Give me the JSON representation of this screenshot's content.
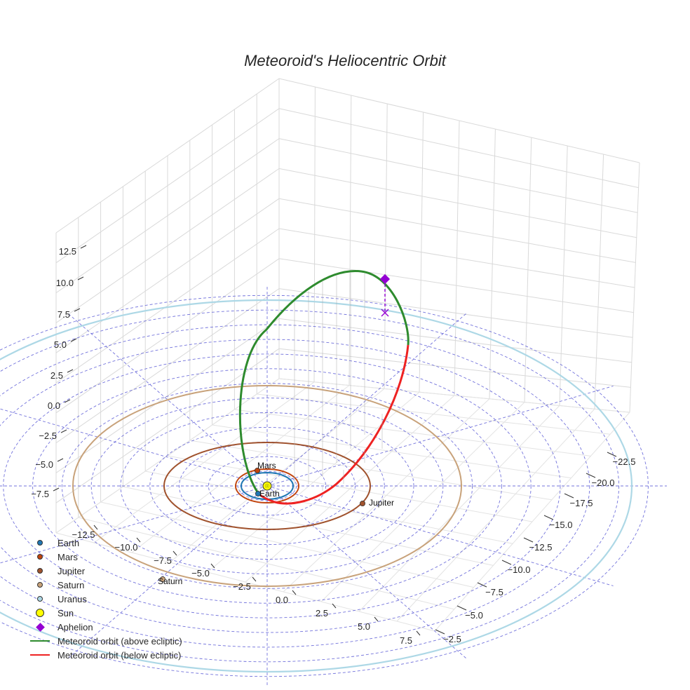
{
  "chart_data": {
    "type": "scatter",
    "projection": "3d",
    "title": "Meteoroid's Heliocentric Orbit",
    "xlabel": "",
    "ylabel": "",
    "zlabel": "",
    "x_ticks": [
      "−12.5",
      "−10.0",
      "−7.5",
      "−5.0",
      "−2.5",
      "0.0",
      "2.5",
      "5.0",
      "7.5"
    ],
    "y_ticks": [
      "−2.5",
      "−5.0",
      "−7.5",
      "−10.0",
      "−12.5",
      "−15.0",
      "−17.5",
      "−20.0",
      "−22.5"
    ],
    "z_ticks": [
      "−7.5",
      "−5.0",
      "−2.5",
      "0.0",
      "2.5",
      "5.0",
      "7.5",
      "10.0",
      "12.5"
    ],
    "xlim": [
      -13.5,
      9
    ],
    "ylim": [
      -24,
      -1
    ],
    "zlim": [
      -8.5,
      13.5
    ],
    "grid": true,
    "ecliptic_grid": "dashed polar rings and radial spokes",
    "legend_position": "lower-left",
    "planets": [
      {
        "name": "Earth",
        "color": "#1f77b4",
        "orbit_radius_au": 1.0,
        "label_shown": true
      },
      {
        "name": "Mars",
        "color": "#c1440e",
        "orbit_radius_au": 1.52,
        "label_shown": true
      },
      {
        "name": "Jupiter",
        "color": "#a0522d",
        "orbit_radius_au": 5.2,
        "label_shown": true
      },
      {
        "name": "Saturn",
        "color": "#c8a27a",
        "orbit_radius_au": 9.58,
        "label_shown": true
      },
      {
        "name": "Uranus",
        "color": "#add8e6",
        "orbit_radius_au": 19.2,
        "label_shown": false
      }
    ],
    "sun": {
      "name": "Sun",
      "color": "#ffff00"
    },
    "aphelion": {
      "name": "Aphelion",
      "color": "#9400d3",
      "x": 3.2,
      "y": -12.6,
      "z": 7.9
    },
    "series": [
      {
        "name": "Meteoroid orbit (above ecliptic)",
        "color": "#2e8b2e"
      },
      {
        "name": "Meteoroid orbit (below ecliptic)",
        "color": "#ee2222"
      }
    ],
    "legend": [
      {
        "label": "Earth",
        "marker": "dot",
        "color": "#1f77b4",
        "size": 8
      },
      {
        "label": "Mars",
        "marker": "dot",
        "color": "#c1440e",
        "size": 8
      },
      {
        "label": "Jupiter",
        "marker": "dot",
        "color": "#a0522d",
        "size": 8
      },
      {
        "label": "Saturn",
        "marker": "dot",
        "color": "#c8a27a",
        "size": 8
      },
      {
        "label": "Uranus",
        "marker": "dot",
        "color": "#add8e6",
        "size": 8
      },
      {
        "label": "Sun",
        "marker": "dot",
        "color": "#ffff00",
        "size": 12
      },
      {
        "label": "Aphelion",
        "marker": "diamond",
        "color": "#9400d3",
        "size": 9
      },
      {
        "label": "Meteoroid orbit (above ecliptic)",
        "marker": "line",
        "color": "#2e8b2e"
      },
      {
        "label": "Meteoroid orbit (below ecliptic)",
        "marker": "line",
        "color": "#ee2222"
      }
    ]
  }
}
